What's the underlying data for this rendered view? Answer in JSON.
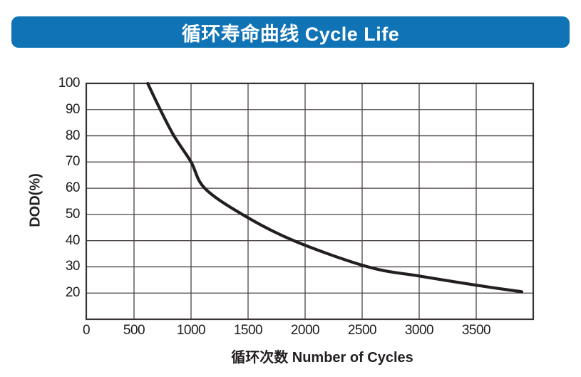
{
  "banner": {
    "title": "循环寿命曲线 Cycle Life",
    "bg_color": "#0f73b5",
    "text_color": "#ffffff"
  },
  "chart_data": {
    "type": "line",
    "title": "循环寿命曲线 Cycle Life",
    "xlabel": "循环次数 Number of Cycles",
    "ylabel": "DOD(%)",
    "xlim": [
      0,
      4000
    ],
    "ylim": [
      10,
      100
    ],
    "x_ticks": [
      0,
      500,
      1000,
      1500,
      2000,
      2500,
      3000,
      3500
    ],
    "y_ticks": [
      100,
      90,
      80,
      70,
      60,
      50,
      40,
      30,
      20
    ],
    "grid": true,
    "legend": "none",
    "colors": {
      "curve": "#231f20",
      "grid": "#4a4443",
      "border": "#383332",
      "tick_text": "#1e1b1a"
    },
    "series": [
      {
        "name": "cycle-life",
        "points": [
          [
            620,
            100
          ],
          [
            730,
            90
          ],
          [
            850,
            80
          ],
          [
            1000,
            70
          ],
          [
            1120,
            60
          ],
          [
            1450,
            50
          ],
          [
            1900,
            40
          ],
          [
            2550,
            30
          ],
          [
            3000,
            26.5
          ],
          [
            3500,
            23
          ],
          [
            3900,
            20.5
          ]
        ]
      }
    ]
  }
}
